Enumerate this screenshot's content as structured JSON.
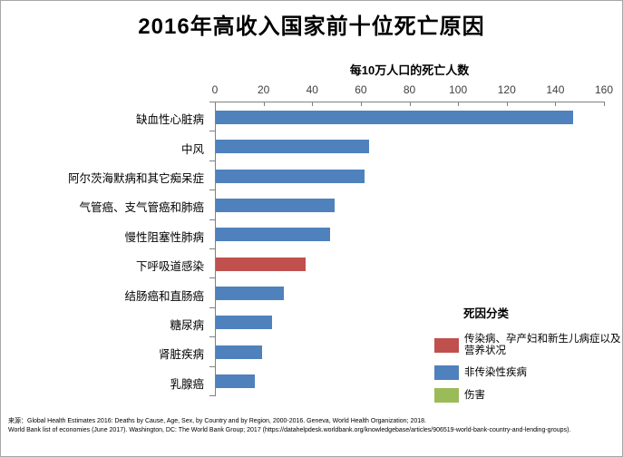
{
  "title": "2016年高收入国家前十位死亡原因",
  "chart_data": {
    "type": "bar",
    "orientation": "horizontal",
    "title": "2016年高收入国家前十位死亡原因",
    "axis_title": "每10万人口的死亡人数",
    "xlabel": "每10万人口的死亡人数",
    "ylabel": "",
    "xlim": [
      0,
      160
    ],
    "xticks": [
      0,
      20,
      40,
      60,
      80,
      100,
      120,
      140,
      160
    ],
    "grid": false,
    "legend_position": "right",
    "categories": [
      "缺血性心脏病",
      "中风",
      "阿尔茨海默病和其它痴呆症",
      "气管癌、支气管癌和肺癌",
      "慢性阻塞性肺病",
      "下呼吸道感染",
      "结肠癌和直肠癌",
      "糖尿病",
      "肾脏疾病",
      "乳腺癌"
    ],
    "values": [
      147,
      63,
      61,
      49,
      47,
      37,
      28,
      23,
      19,
      16
    ],
    "bar_categories": [
      "ncd",
      "ncd",
      "ncd",
      "ncd",
      "ncd",
      "cmnn",
      "ncd",
      "ncd",
      "ncd",
      "ncd"
    ],
    "category_colors": {
      "cmnn": "#C0504D",
      "ncd": "#4F81BD",
      "injury": "#9BBB59"
    }
  },
  "legend": {
    "title": "死因分类",
    "items": [
      {
        "key": "cmnn",
        "label": "传染病、孕产妇和新生儿病症以及营养状况",
        "color": "#C0504D"
      },
      {
        "key": "ncd",
        "label": "非传染性疾病",
        "color": "#4F81BD"
      },
      {
        "key": "injury",
        "label": "伤害",
        "color": "#9BBB59"
      }
    ]
  },
  "footer": {
    "source_label": "来源：",
    "line1": "Global Health Estimates 2016: Deaths by Cause, Age, Sex, by Country and by Region, 2000-2016. Geneva, World Health Organization; 2018.",
    "line2": "World Bank list of economies (June 2017). Washington, DC: The World Bank Group; 2017 (https://datahelpdesk.worldbank.org/knowledgebase/articles/906519-world-bank-country-and-lending-groups)."
  }
}
